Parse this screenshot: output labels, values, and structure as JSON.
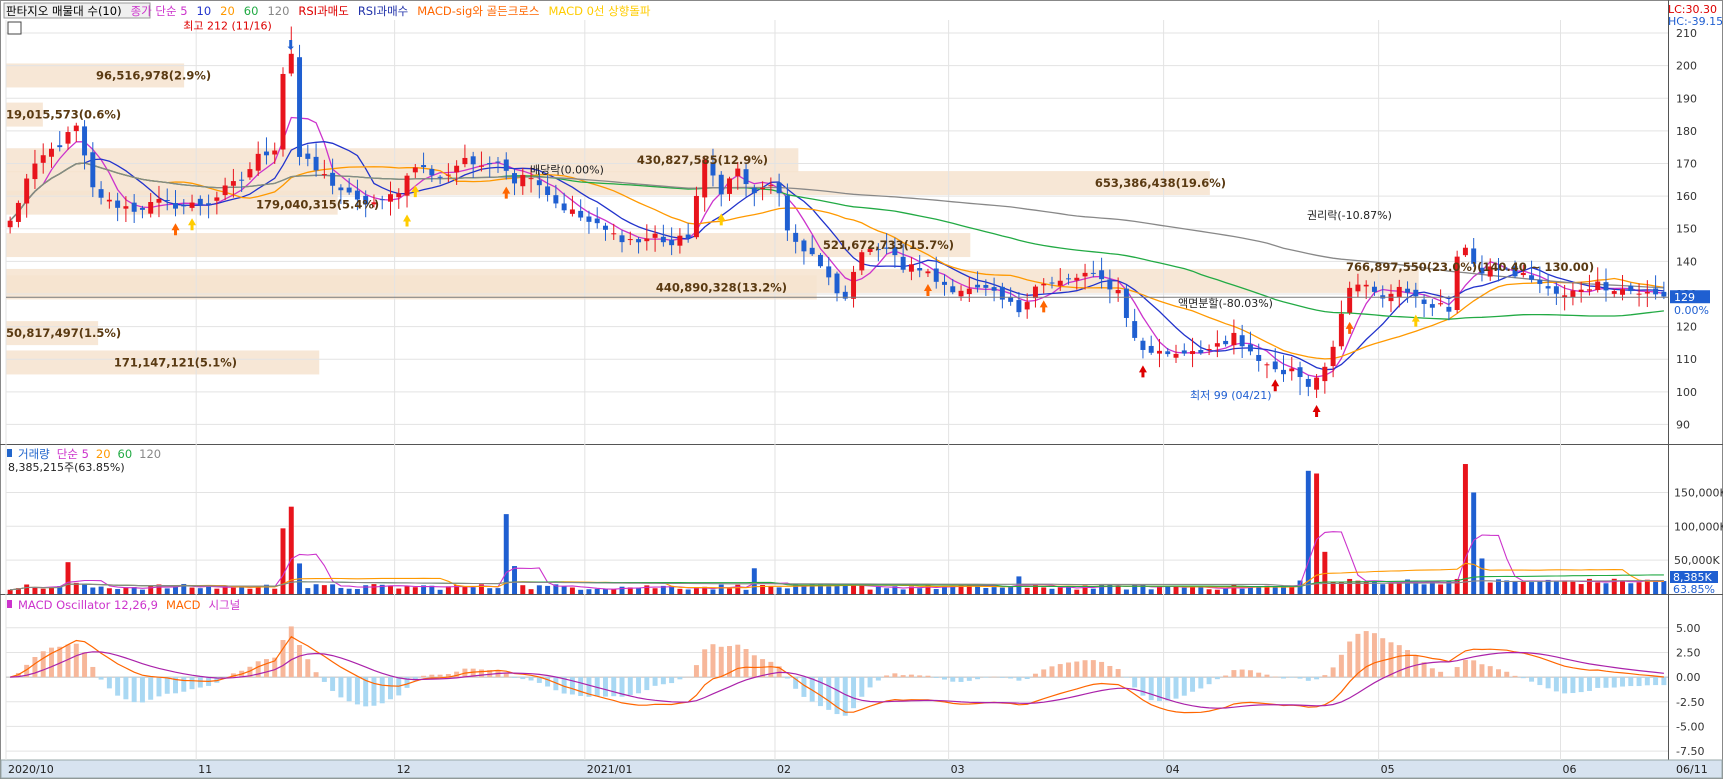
{
  "price_panel": {
    "legend": [
      {
        "text": "판타지오 매물대 수(10)",
        "color": "#000000",
        "boxed": true
      },
      {
        "text": "종가 단순 5",
        "color": "#cc33cc"
      },
      {
        "text": "10",
        "color": "#2233cc"
      },
      {
        "text": "20",
        "color": "#ff9900"
      },
      {
        "text": "60",
        "color": "#22aa44"
      },
      {
        "text": "120",
        "color": "#888888"
      },
      {
        "text": "RSI과매도",
        "color": "#dd0000"
      },
      {
        "text": "RSI과매수",
        "color": "#2233aa"
      },
      {
        "text": "MACD-sig와 골든크로스",
        "color": "#ff6600"
      },
      {
        "text": "MACD 0선 상향돌파",
        "color": "#ffcc00"
      }
    ],
    "corner": {
      "lc": "LC:30.30",
      "hc": "HC:-39.15"
    },
    "y_ticks": [
      "90",
      "100",
      "110",
      "120",
      "130",
      "140",
      "150",
      "160",
      "170",
      "180",
      "190",
      "200",
      "210"
    ],
    "current_price": "129",
    "current_change": "0.00%",
    "high_label": "최고 212 (11/16)",
    "low_label": "최저 99 (04/21)",
    "events": {
      "dividend": "배당락(0.00%)",
      "split": "액면분할(-80.03%)",
      "rights": "권리락(-10.87%)",
      "range": "766,897,550(23.0%)(140.40 ~ 130.00)"
    },
    "profile_labels": [
      "96,516,978(2.9%)",
      "19,015,573(0.6%)",
      "179,040,315(5.4%)",
      "430,827,585(12.9%)",
      "653,386,438(19.6%)",
      "521,672,733(15.7%)",
      "440,890,328(13.2%)",
      "50,817,497(1.5%)",
      "171,147,121(5.1%)"
    ]
  },
  "volume_panel": {
    "legend": [
      {
        "text": "거래량",
        "color": "#2266cc"
      },
      {
        "text": "단순 5",
        "color": "#cc33cc"
      },
      {
        "text": "20",
        "color": "#ff9900"
      },
      {
        "text": "60",
        "color": "#22aa44"
      },
      {
        "text": "120",
        "color": "#888888"
      }
    ],
    "info": "8,385,215주(63.85%)",
    "y_ticks": [
      "50,000K",
      "100,000K",
      "150,000K"
    ],
    "current_volume": "8,385K",
    "current_pct": "63.85%"
  },
  "macd_panel": {
    "legend": [
      {
        "text": "MACD Oscillator 12,26,9",
        "color": "#cc33cc"
      },
      {
        "text": "MACD",
        "color": "#ff6600"
      },
      {
        "text": "시그널",
        "color": "#cc33cc"
      }
    ],
    "y_ticks": [
      "-7.50",
      "-5.00",
      "-2.50",
      "0.00",
      "2.50",
      "5.00"
    ]
  },
  "x_axis": {
    "labels": [
      "2020/10",
      "11",
      "12",
      "2021/01",
      "02",
      "03",
      "04",
      "05",
      "06"
    ],
    "end_label": "06/11"
  },
  "chart_data": {
    "type": "candlestick",
    "price_range": [
      84,
      214
    ],
    "volume_range": [
      0,
      195000
    ],
    "volume_unit": "K shares",
    "macd_range": [
      -8.2,
      6.6
    ],
    "months": [
      {
        "label": "2020/10",
        "index": 0
      },
      {
        "label": "11",
        "index": 23
      },
      {
        "label": "12",
        "index": 47
      },
      {
        "label": "2021/01",
        "index": 70
      },
      {
        "label": "02",
        "index": 93
      },
      {
        "label": "03",
        "index": 114
      },
      {
        "label": "04",
        "index": 140
      },
      {
        "label": "05",
        "index": 166
      },
      {
        "label": "06",
        "index": 188
      }
    ],
    "price_keypoints": [
      [
        0,
        152
      ],
      [
        2,
        165
      ],
      [
        4,
        172
      ],
      [
        6,
        176
      ],
      [
        8,
        181
      ],
      [
        10,
        162
      ],
      [
        12,
        158
      ],
      [
        15,
        156
      ],
      [
        18,
        158
      ],
      [
        21,
        157
      ],
      [
        24,
        158
      ],
      [
        26,
        162
      ],
      [
        28,
        165
      ],
      [
        30,
        172
      ],
      [
        32,
        175
      ],
      [
        33,
        198
      ],
      [
        34,
        204
      ],
      [
        35,
        172
      ],
      [
        37,
        168
      ],
      [
        40,
        162
      ],
      [
        42,
        158
      ],
      [
        45,
        158
      ],
      [
        47,
        162
      ],
      [
        49,
        170
      ],
      [
        52,
        165
      ],
      [
        55,
        172
      ],
      [
        57,
        168
      ],
      [
        59,
        172
      ],
      [
        61,
        165
      ],
      [
        63,
        167
      ],
      [
        66,
        158
      ],
      [
        68,
        155
      ],
      [
        70,
        152
      ],
      [
        73,
        148
      ],
      [
        76,
        146
      ],
      [
        78,
        148
      ],
      [
        80,
        145
      ],
      [
        82,
        148
      ],
      [
        83,
        160
      ],
      [
        84,
        170
      ],
      [
        86,
        162
      ],
      [
        88,
        168
      ],
      [
        90,
        160
      ],
      [
        92,
        164
      ],
      [
        93,
        160
      ],
      [
        94,
        148
      ],
      [
        95,
        146
      ],
      [
        97,
        142
      ],
      [
        99,
        134
      ],
      [
        100,
        130
      ],
      [
        101,
        128
      ],
      [
        102,
        138
      ],
      [
        104,
        145
      ],
      [
        106,
        144
      ],
      [
        108,
        138
      ],
      [
        110,
        138
      ],
      [
        112,
        134
      ],
      [
        114,
        132
      ],
      [
        116,
        131
      ],
      [
        118,
        131
      ],
      [
        120,
        128
      ],
      [
        122,
        125
      ],
      [
        123,
        129
      ],
      [
        124,
        133
      ],
      [
        126,
        133
      ],
      [
        128,
        134
      ],
      [
        130,
        136
      ],
      [
        132,
        134
      ],
      [
        134,
        131
      ],
      [
        136,
        116
      ],
      [
        137,
        113
      ],
      [
        139,
        112
      ],
      [
        141,
        112
      ],
      [
        143,
        113
      ],
      [
        145,
        113
      ],
      [
        147,
        114
      ],
      [
        148,
        118
      ],
      [
        149,
        113
      ],
      [
        151,
        110
      ],
      [
        153,
        107
      ],
      [
        155,
        106
      ],
      [
        156,
        105
      ],
      [
        157,
        103
      ],
      [
        158,
        104
      ],
      [
        159,
        108
      ],
      [
        160,
        115
      ],
      [
        161,
        125
      ],
      [
        162,
        133
      ],
      [
        163,
        134
      ],
      [
        165,
        130
      ],
      [
        166,
        128
      ],
      [
        168,
        133
      ],
      [
        170,
        128
      ],
      [
        172,
        127
      ],
      [
        174,
        125
      ],
      [
        175,
        140
      ],
      [
        176,
        145
      ],
      [
        177,
        140
      ],
      [
        178,
        136
      ],
      [
        180,
        138
      ],
      [
        182,
        136
      ],
      [
        184,
        135
      ],
      [
        186,
        131
      ],
      [
        188,
        129
      ],
      [
        190,
        132
      ],
      [
        192,
        133
      ],
      [
        194,
        132
      ],
      [
        196,
        131
      ],
      [
        198,
        130
      ],
      [
        200,
        129
      ]
    ],
    "volume_spikes": [
      [
        7,
        47000
      ],
      [
        33,
        97000
      ],
      [
        34,
        129000
      ],
      [
        60,
        118000
      ],
      [
        90,
        38000
      ],
      [
        122,
        26000
      ],
      [
        157,
        182000
      ],
      [
        158,
        178000
      ],
      [
        176,
        192000
      ],
      [
        177,
        150000
      ]
    ],
    "profile": [
      {
        "price": 197,
        "volume": 96516978,
        "pct": 2.9
      },
      {
        "price": 185,
        "volume": 19015573,
        "pct": 0.6
      },
      {
        "price": 171,
        "volume": 430827585,
        "pct": 12.9
      },
      {
        "price": 164,
        "volume": 653386438,
        "pct": 19.6
      },
      {
        "price": 158,
        "volume": 179040315,
        "pct": 5.4
      },
      {
        "price": 145,
        "volume": 521672733,
        "pct": 15.7
      },
      {
        "price": 134,
        "volume": 766897550,
        "pct": 23.0
      },
      {
        "price": 132,
        "volume": 440890328,
        "pct": 13.2
      },
      {
        "price": 118,
        "volume": 50817497,
        "pct": 1.5
      },
      {
        "price": 109,
        "volume": 171147121,
        "pct": 5.1
      }
    ],
    "current_price": 129,
    "high": {
      "value": 212,
      "date": "11/16"
    },
    "low": {
      "value": 99,
      "date": "04/21"
    }
  }
}
